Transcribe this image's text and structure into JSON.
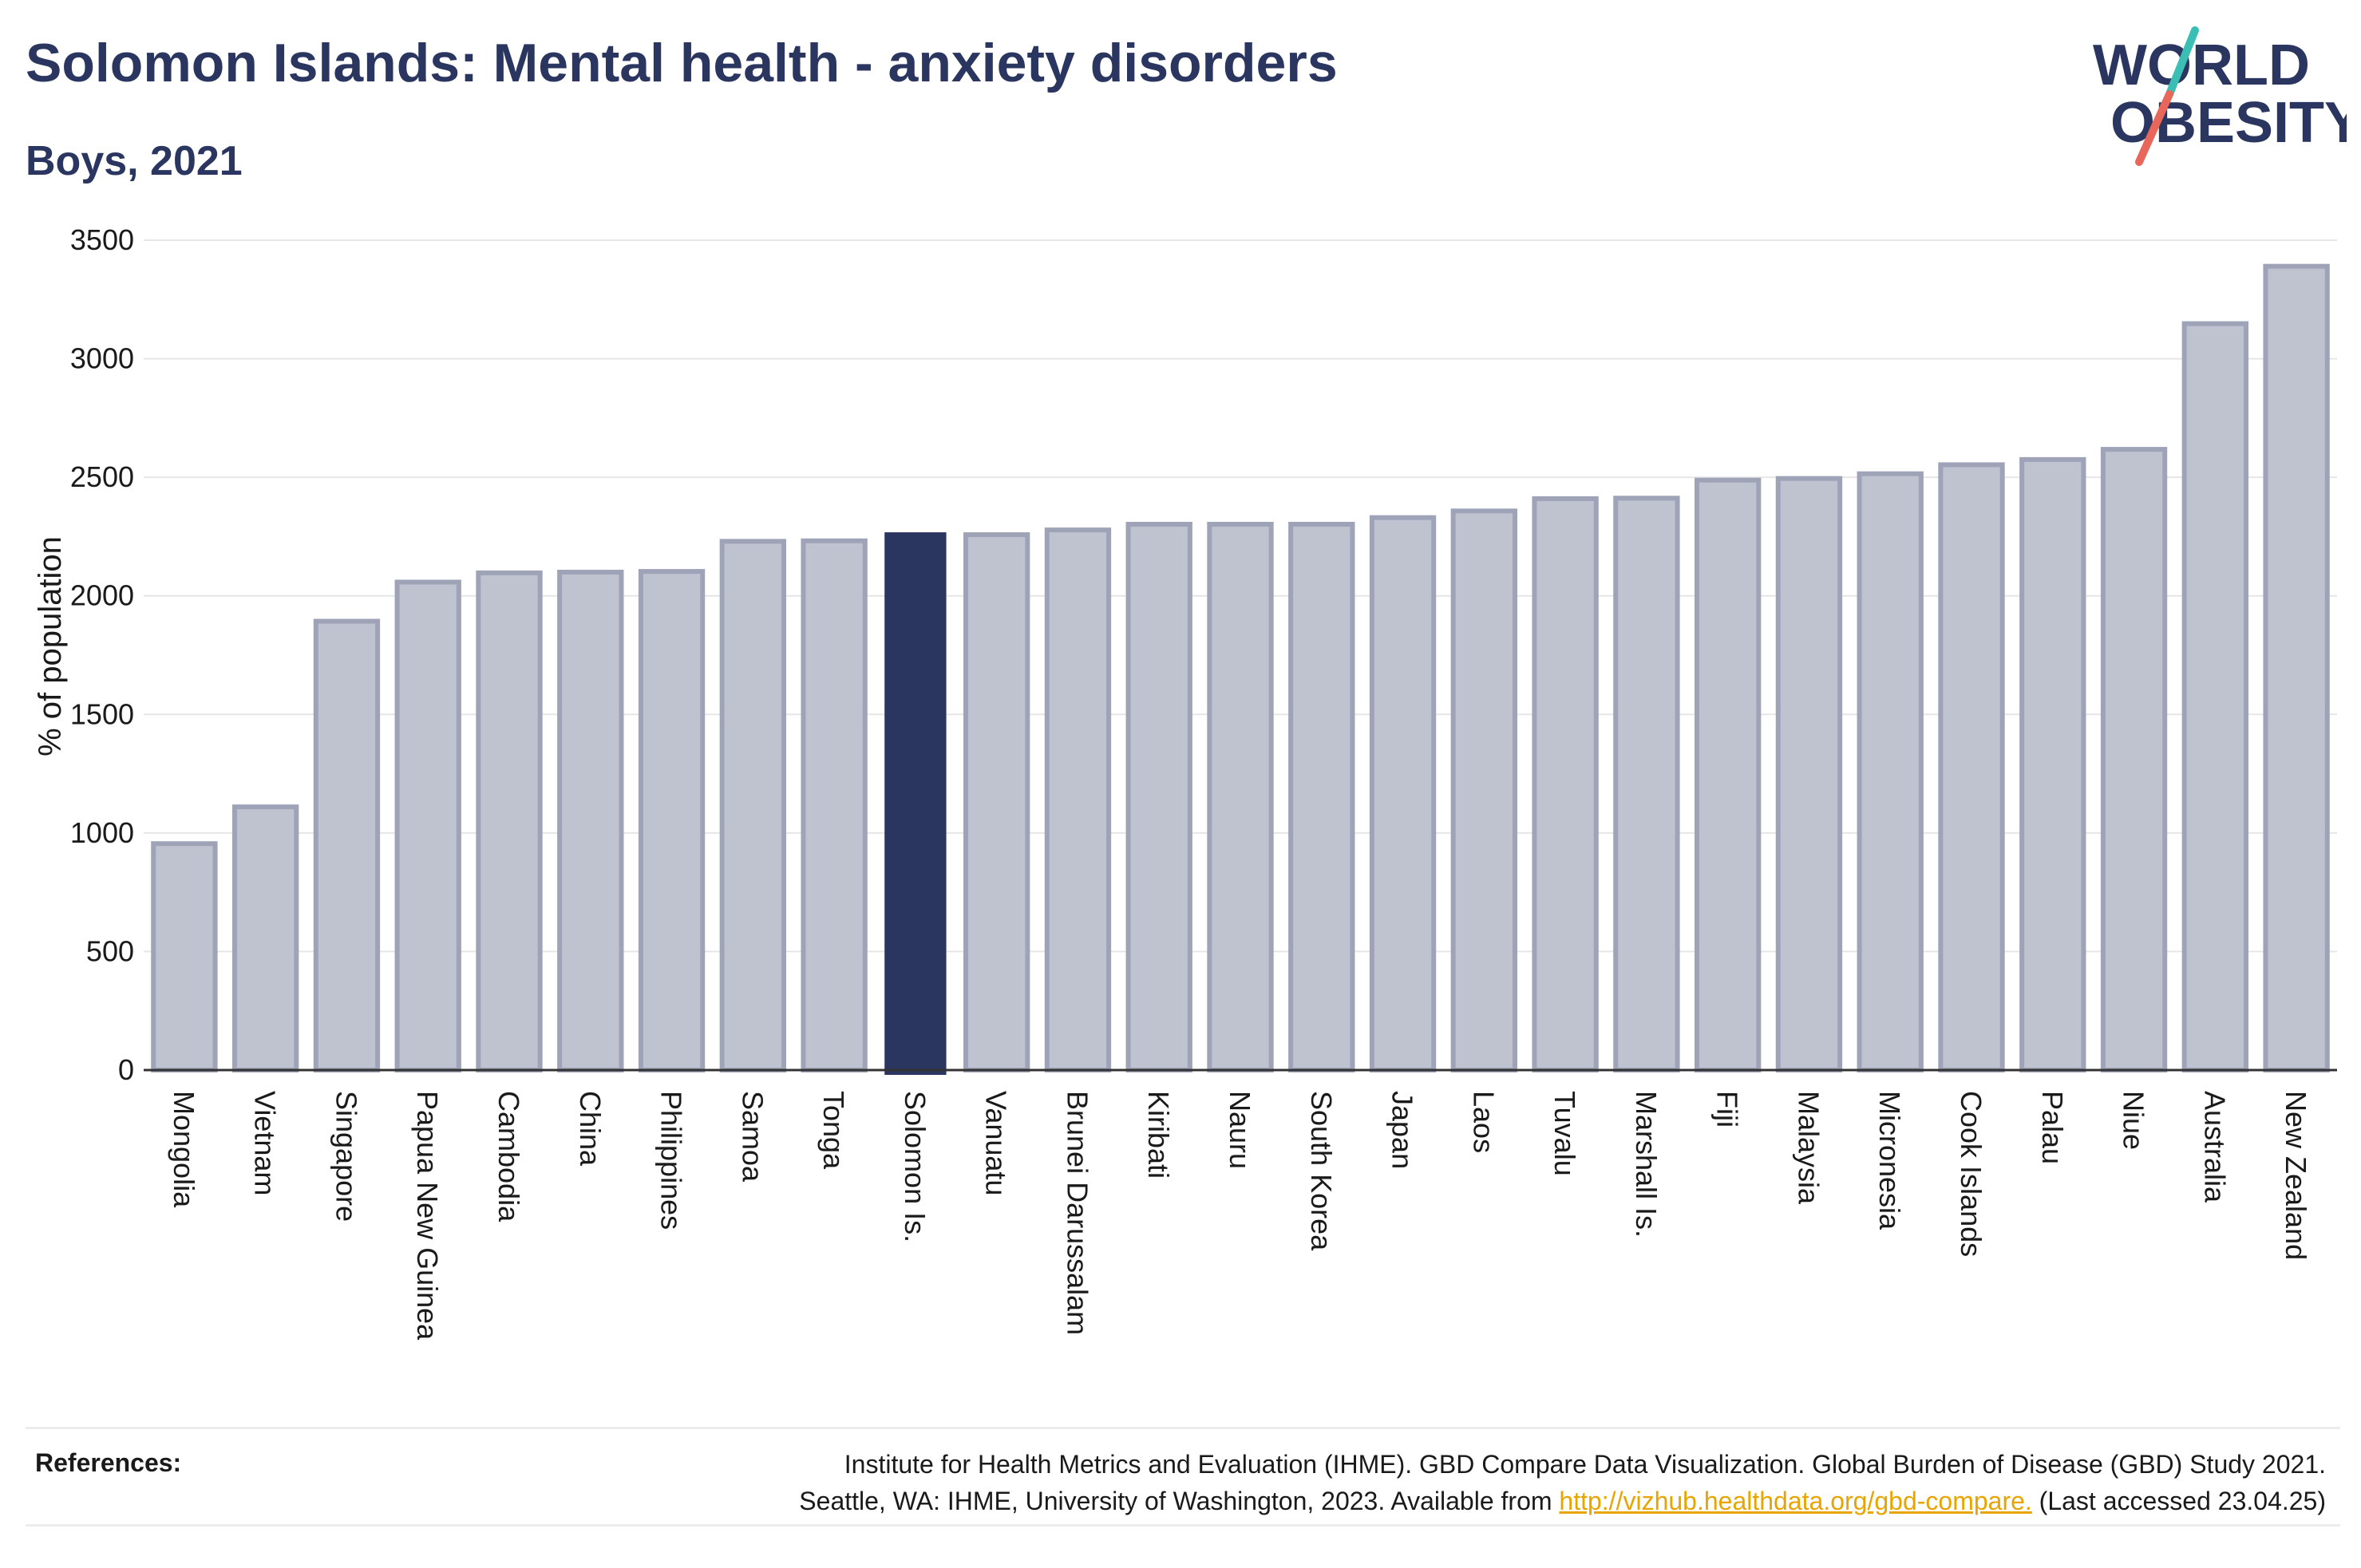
{
  "title": "Solomon Islands: Mental health - anxiety disorders",
  "subtitle": "Boys, 2021",
  "logo": {
    "line1": "WORLD",
    "line2": "OBESITY",
    "text_color": "#2a365f",
    "slash_top_color": "#3bbfb5",
    "slash_bottom_color": "#e8665a"
  },
  "chart_data": {
    "type": "bar",
    "ylabel": "% of population",
    "ylim": [
      0,
      3500
    ],
    "yticks": [
      0,
      500,
      1000,
      1500,
      2000,
      2500,
      3000,
      3500
    ],
    "grid": true,
    "highlight_category": "Solomon Is.",
    "bar_color": "#bfc2cf",
    "bar_border_color": "#9ea3b8",
    "highlight_color": "#2a365f",
    "categories": [
      "Mongolia",
      "Vietnam",
      "Singapore",
      "Papua New Guinea",
      "Cambodia",
      "China",
      "Philippines",
      "Samoa",
      "Tonga",
      "Solomon Is.",
      "Vanuatu",
      "Brunei Darussalam",
      "Kiribati",
      "Nauru",
      "South Korea",
      "Japan",
      "Laos",
      "Tuvalu",
      "Marshall Is.",
      "Fiji",
      "Malaysia",
      "Micronesia",
      "Cook Islands",
      "Palau",
      "Niue",
      "Australia",
      "New Zealand"
    ],
    "values": [
      955,
      1110,
      1893,
      2058,
      2097,
      2100,
      2103,
      2230,
      2232,
      2268,
      2258,
      2278,
      2302,
      2302,
      2302,
      2330,
      2358,
      2410,
      2412,
      2488,
      2495,
      2515,
      2553,
      2575,
      2618,
      3148,
      3390
    ]
  },
  "references": {
    "label": "References:",
    "line1": "Institute for Health Metrics and Evaluation (IHME). GBD Compare Data Visualization. Global Burden of Disease (GBD) Study 2021.",
    "line2_prefix": "Seattle, WA: IHME, University of Washington, 2023. Available from",
    "link_text": "http://vizhub.healthdata.org/gbd-compare.",
    "line2_suffix": "(Last accessed 23.04.25)"
  }
}
